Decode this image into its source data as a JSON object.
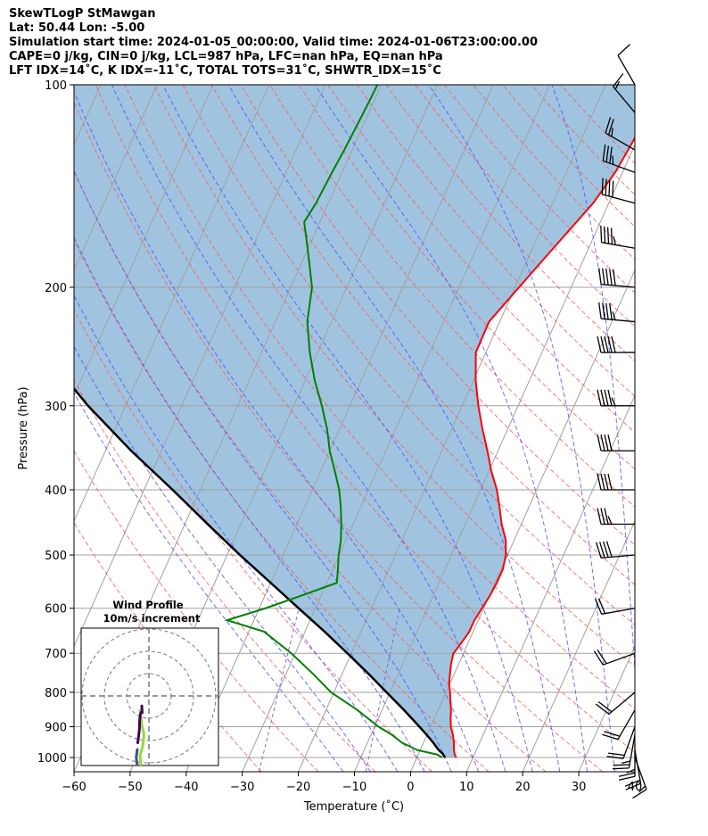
{
  "header": {
    "line1": "SkewTLogP StMawgan",
    "line2": "Lat: 50.44   Lon: -5.00",
    "line3": "Simulation start time: 2024-01-05_00:00:00, Valid time: 2024-01-06T23:00:00.00",
    "line4": "CAPE=0 j/kg, CIN=0 j/kg, LCL=987 hPa, LFC=nan hPa, EQ=nan hPa",
    "line5": "LFT IDX=14˚C, K IDX=-11˚C, TOTAL TOTS=31˚C, SHWTR_IDX=15˚C"
  },
  "chart_data": {
    "type": "line",
    "skewT": {
      "xlabel": "Temperature (˚C)",
      "ylabel": "Pressure (hPa)",
      "xlim": [
        -60,
        40
      ],
      "ylim": [
        1050,
        100
      ],
      "y_scale": "log",
      "x_ticks": [
        -60,
        -50,
        -40,
        -30,
        -20,
        -10,
        0,
        10,
        20,
        30,
        40
      ],
      "x_tick_labels": [
        "−60",
        "−50",
        "−40",
        "−30",
        "−20",
        "−10",
        "0",
        "10",
        "20",
        "30",
        "40"
      ],
      "y_ticks": [
        1000,
        900,
        800,
        700,
        600,
        500,
        400,
        300,
        200,
        100
      ],
      "y_tick_labels": [
        "1000",
        "900",
        "800",
        "700",
        "600",
        "500",
        "400",
        "300",
        "200",
        "100"
      ],
      "grid": true,
      "colors": {
        "temperature": "#ff0000",
        "dewpoint": "#008000",
        "parcel": "#000000",
        "shade": "#a0c4e0",
        "dry_adiabat": "#ff5555",
        "moist_adiabat": "#4d4dff",
        "mixing_ratio": "#9966cc",
        "isotherm": "#a0a0a0"
      },
      "temperature": {
        "p": [
          1000,
          990,
          975,
          950,
          925,
          900,
          875,
          850,
          825,
          800,
          775,
          750,
          725,
          700,
          675,
          650,
          625,
          600,
          575,
          550,
          525,
          500,
          475,
          450,
          425,
          400,
          375,
          350,
          325,
          300,
          275,
          250,
          225,
          200,
          175,
          150,
          135,
          125,
          115,
          105,
          100
        ],
        "t": [
          7.0,
          6.5,
          6.0,
          5.4,
          4.6,
          3.6,
          2.9,
          2.3,
          1.5,
          0.7,
          -0.2,
          -0.8,
          -1.4,
          -1.8,
          -1.2,
          -0.7,
          -0.7,
          -0.3,
          0.1,
          0.3,
          0.3,
          -0.3,
          -1.5,
          -3.5,
          -5.2,
          -7.1,
          -9.6,
          -11.9,
          -14.5,
          -17.1,
          -19.6,
          -21.8,
          -21.9,
          -19.3,
          -16.3,
          -12.8,
          -11.3,
          -10.8,
          -10.3,
          -9.9,
          -9.7
        ]
      },
      "dewpoint": {
        "p": [
          1000,
          990,
          975,
          950,
          925,
          900,
          850,
          800,
          750,
          700,
          650,
          625,
          600,
          575,
          550,
          525,
          500,
          475,
          450,
          425,
          400,
          375,
          350,
          325,
          300,
          275,
          250,
          225,
          200,
          175,
          160,
          150,
          135,
          125,
          115,
          105,
          100
        ],
        "t": [
          4.5,
          3.4,
          -0.5,
          -3.9,
          -6.3,
          -9.3,
          -14.4,
          -20.5,
          -25.3,
          -30.7,
          -37.3,
          -44.8,
          -38.9,
          -33.6,
          -28.2,
          -29.1,
          -30.1,
          -30.9,
          -32.1,
          -33.5,
          -35.2,
          -37.5,
          -40.0,
          -42.2,
          -45.0,
          -48.3,
          -51.4,
          -54.3,
          -56.2,
          -60.1,
          -62.8,
          -62.2,
          -61.8,
          -61.4,
          -61.1,
          -60.8,
          -60.7
        ]
      },
      "parcel": {
        "p": [
          1000,
          987,
          975,
          950,
          925,
          900,
          850,
          800,
          750,
          700,
          650,
          600,
          550,
          500,
          450,
          400,
          350,
          300,
          250,
          200,
          175,
          150,
          125,
          110,
          100
        ],
        "t": [
          5.0,
          4.3,
          3.3,
          1.7,
          -0.1,
          -2.0,
          -6.1,
          -10.6,
          -15.4,
          -20.7,
          -26.5,
          -33.0,
          -40.0,
          -47.7,
          -55.9,
          -64.9,
          -75.4,
          -86.7,
          -98.7,
          -112.3,
          -120.5,
          -129.4,
          -139.6,
          -147.1,
          -152.5
        ]
      },
      "wind_barbs": {
        "p": [
          1000,
          975,
          950,
          925,
          900,
          850,
          800,
          700,
          600,
          500,
          450,
          400,
          350,
          300,
          250,
          225,
          200,
          175,
          150,
          135,
          125,
          110,
          100
        ],
        "speed_kt": [
          15,
          20,
          25,
          25,
          20,
          20,
          20,
          20,
          20,
          40,
          35,
          40,
          40,
          45,
          50,
          45,
          50,
          45,
          40,
          35,
          25,
          15,
          10
        ],
        "direction_deg": [
          160,
          170,
          180,
          190,
          200,
          210,
          230,
          250,
          260,
          265,
          270,
          270,
          270,
          270,
          270,
          275,
          275,
          280,
          285,
          290,
          300,
          320,
          330
        ]
      }
    },
    "wind_profile": {
      "title": "Wind Profile",
      "subtitle": "10m/s increment",
      "ring_step_ms": 10,
      "rings": 3,
      "hodograph": {
        "u": [
          -3.5,
          -3.8,
          -4.0,
          -3.5,
          -3.0,
          -2.6,
          -2.2,
          -3.0,
          -3.5,
          -4.0,
          -4.8,
          -5.4,
          -5.7,
          -5.2,
          -5.0,
          -4.6,
          -4.3,
          -4.2,
          -4.1,
          -3.8,
          -3.5,
          -3.2,
          -3.0,
          -3.2
        ],
        "v": [
          -32.0,
          -29.0,
          -26.5,
          -25.0,
          -23.5,
          -21.0,
          -17.0,
          -14.0,
          -10.0,
          -6.5,
          -32.5,
          -30.0,
          -27.5,
          -24.0,
          -21.0,
          -18.0,
          -15.0,
          -12.5,
          -10.0,
          -8.0,
          -7.5,
          -7.0,
          -7.5,
          -4.5
        ],
        "segments": [
          10,
          14
        ],
        "colors": [
          "#95d840",
          "#3b528b",
          "#440154"
        ]
      }
    }
  }
}
